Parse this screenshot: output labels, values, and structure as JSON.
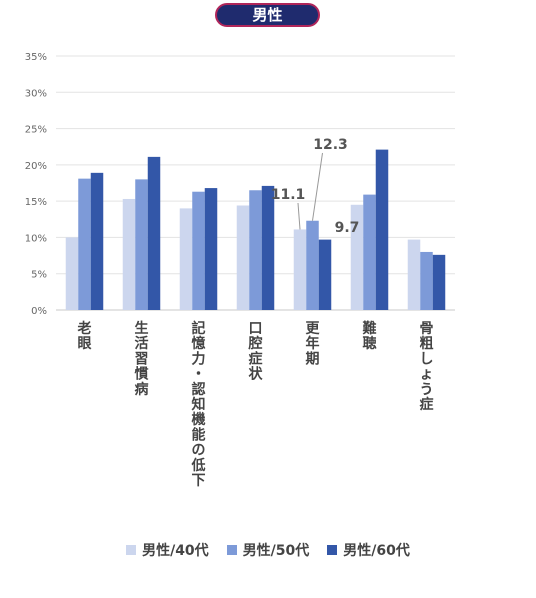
{
  "title": "男性",
  "chart_data": {
    "type": "bar",
    "title": "男性",
    "categories": [
      "老眼",
      "生活習慣病",
      "記憶力・認知機能の低下",
      "口腔症状",
      "更年期",
      "難聴",
      "骨粗しょう症"
    ],
    "series": [
      {
        "name": "男性/40代",
        "color": "#ccd6ee",
        "values": [
          10,
          15.3,
          14,
          14.4,
          11.1,
          14.5,
          9.7
        ]
      },
      {
        "name": "男性/50代",
        "color": "#7d9ad8",
        "values": [
          18.1,
          18,
          16.3,
          16.5,
          12.3,
          15.9,
          8
        ]
      },
      {
        "name": "男性/60代",
        "color": "#3357a8",
        "values": [
          18.9,
          21.1,
          16.8,
          17.1,
          9.7,
          22.1,
          7.6
        ]
      }
    ],
    "ylim": [
      0,
      35
    ],
    "yticks": [
      "0%",
      "5%",
      "10%",
      "15%",
      "20%",
      "25%",
      "30%",
      "35%"
    ],
    "grid": true,
    "legend_position": "bottom",
    "data_labels": [
      {
        "category": "更年期",
        "series": "男性/40代",
        "text": "11.1"
      },
      {
        "category": "更年期",
        "series": "男性/50代",
        "text": "12.3"
      },
      {
        "category": "更年期",
        "series": "男性/60代",
        "text": "9.7"
      }
    ]
  }
}
